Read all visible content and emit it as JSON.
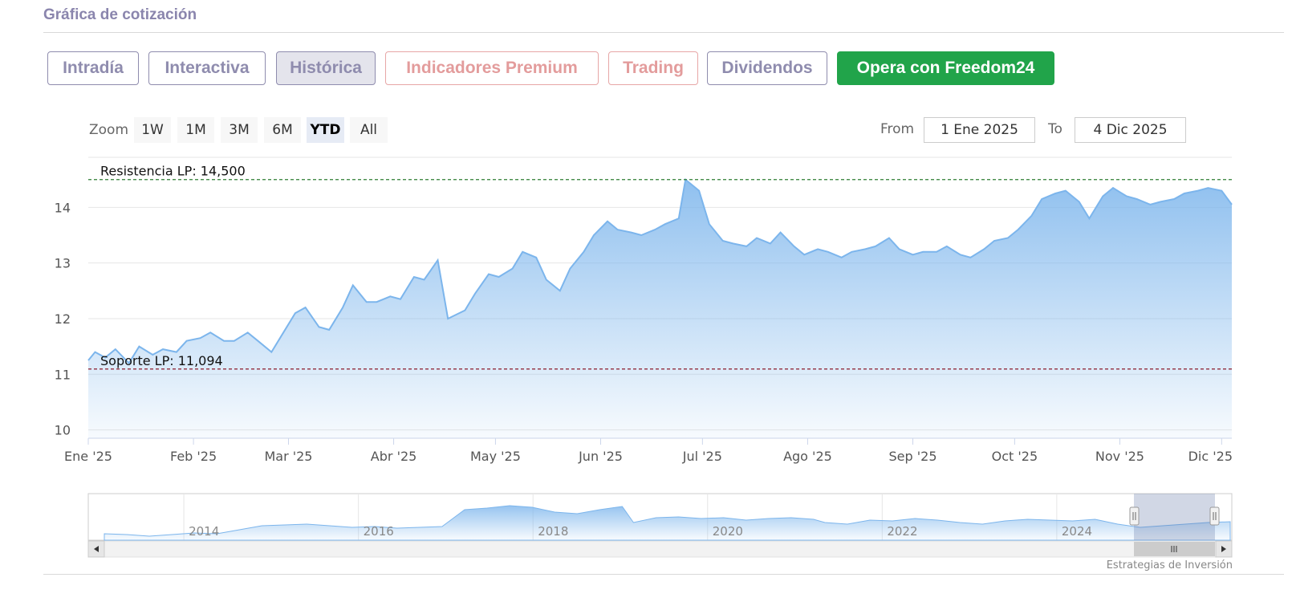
{
  "header": {
    "title": "Gráfica de cotización"
  },
  "tabs": [
    {
      "label": "Intradía",
      "style": "purple"
    },
    {
      "label": "Interactiva",
      "style": "purple"
    },
    {
      "label": "Histórica",
      "style": "active"
    },
    {
      "label": "Indicadores Premium",
      "style": "salmon"
    },
    {
      "label": "Trading",
      "style": "salmon"
    },
    {
      "label": "Dividendos",
      "style": "purple"
    },
    {
      "label": "Opera con Freedom24",
      "style": "green"
    }
  ],
  "zoom": {
    "label": "Zoom",
    "buttons": [
      "1W",
      "1M",
      "3M",
      "6M",
      "YTD",
      "All"
    ],
    "selected": "YTD"
  },
  "range": {
    "from_label": "From",
    "from_value": "1 Ene 2025",
    "to_label": "To",
    "to_value": "4 Dic 2025"
  },
  "credits": "Estrategias de Inversión",
  "colors": {
    "line": "#7cb5ec",
    "resistance": "#2e7d32",
    "support": "#8b1a2b",
    "accent_green": "#21a44a",
    "tab_purple": "#8f8cae",
    "tab_salmon": "#e39c9c"
  },
  "chart_data": {
    "type": "area",
    "x_axis": {
      "ticks": [
        "Ene '25",
        "Feb '25",
        "Mar '25",
        "Abr '25",
        "May '25",
        "Jun '25",
        "Jul '25",
        "Ago '25",
        "Sep '25",
        "Oct '25",
        "Nov '25",
        "Dic '25"
      ],
      "range": [
        "2025-01-01",
        "2025-12-04"
      ]
    },
    "y_axis": {
      "ticks": [
        10,
        11,
        12,
        13,
        14
      ],
      "range": [
        9.85,
        14.9
      ]
    },
    "grid": true,
    "plot_lines": [
      {
        "label": "Resistencia LP: 14,500",
        "value": 14.5,
        "color": "#2e7d32"
      },
      {
        "label": "Soporte LP: 11,094",
        "value": 11.094,
        "color": "#8b1a2b"
      }
    ],
    "series": [
      {
        "x": [
          "2025-01-01",
          "2025-01-03",
          "2025-01-06",
          "2025-01-09",
          "2025-01-13",
          "2025-01-16",
          "2025-01-20",
          "2025-01-23",
          "2025-01-27",
          "2025-01-30",
          "2025-02-03",
          "2025-02-06",
          "2025-02-10",
          "2025-02-13",
          "2025-02-17",
          "2025-02-20",
          "2025-02-24",
          "2025-02-27",
          "2025-03-03",
          "2025-03-06",
          "2025-03-10",
          "2025-03-13",
          "2025-03-17",
          "2025-03-20",
          "2025-03-24",
          "2025-03-27",
          "2025-03-31",
          "2025-04-03",
          "2025-04-07",
          "2025-04-10",
          "2025-04-14",
          "2025-04-17",
          "2025-04-22",
          "2025-04-25",
          "2025-04-29",
          "2025-05-02",
          "2025-05-06",
          "2025-05-09",
          "2025-05-13",
          "2025-05-16",
          "2025-05-20",
          "2025-05-23",
          "2025-05-27",
          "2025-05-30",
          "2025-06-03",
          "2025-06-06",
          "2025-06-10",
          "2025-06-13",
          "2025-06-17",
          "2025-06-20",
          "2025-06-24",
          "2025-06-26",
          "2025-06-30",
          "2025-07-03",
          "2025-07-07",
          "2025-07-10",
          "2025-07-14",
          "2025-07-17",
          "2025-07-21",
          "2025-07-24",
          "2025-07-28",
          "2025-07-31",
          "2025-08-04",
          "2025-08-07",
          "2025-08-11",
          "2025-08-14",
          "2025-08-18",
          "2025-08-21",
          "2025-08-25",
          "2025-08-28",
          "2025-09-01",
          "2025-09-04",
          "2025-09-08",
          "2025-09-11",
          "2025-09-15",
          "2025-09-18",
          "2025-09-22",
          "2025-09-25",
          "2025-09-29",
          "2025-10-02",
          "2025-10-06",
          "2025-10-09",
          "2025-10-13",
          "2025-10-16",
          "2025-10-20",
          "2025-10-23",
          "2025-10-27",
          "2025-10-30",
          "2025-11-03",
          "2025-11-06",
          "2025-11-10",
          "2025-11-13",
          "2025-11-17",
          "2025-11-20",
          "2025-11-24",
          "2025-11-27",
          "2025-12-01",
          "2025-12-04"
        ],
        "y": [
          11.25,
          11.4,
          11.3,
          11.45,
          11.2,
          11.5,
          11.35,
          11.45,
          11.4,
          11.6,
          11.65,
          11.75,
          11.6,
          11.6,
          11.75,
          11.6,
          11.4,
          11.7,
          12.1,
          12.2,
          11.85,
          11.8,
          12.2,
          12.6,
          12.3,
          12.3,
          12.4,
          12.35,
          12.75,
          12.7,
          13.05,
          12.0,
          12.15,
          12.45,
          12.8,
          12.75,
          12.9,
          13.2,
          13.1,
          12.7,
          12.5,
          12.9,
          13.2,
          13.5,
          13.75,
          13.6,
          13.55,
          13.5,
          13.6,
          13.7,
          13.8,
          14.5,
          14.3,
          13.7,
          13.4,
          13.35,
          13.3,
          13.45,
          13.35,
          13.55,
          13.3,
          13.15,
          13.25,
          13.2,
          13.1,
          13.2,
          13.25,
          13.3,
          13.45,
          13.25,
          13.15,
          13.2,
          13.2,
          13.3,
          13.15,
          13.1,
          13.25,
          13.4,
          13.45,
          13.6,
          13.85,
          14.15,
          14.25,
          14.3,
          14.1,
          13.8,
          14.2,
          14.35,
          14.2,
          14.15,
          14.05,
          14.1,
          14.15,
          14.25,
          14.3,
          14.35,
          14.3,
          14.05
        ]
      }
    ],
    "navigator": {
      "x_ticks": [
        "2014",
        "2016",
        "2018",
        "2020",
        "2022",
        "2024"
      ]
    }
  }
}
